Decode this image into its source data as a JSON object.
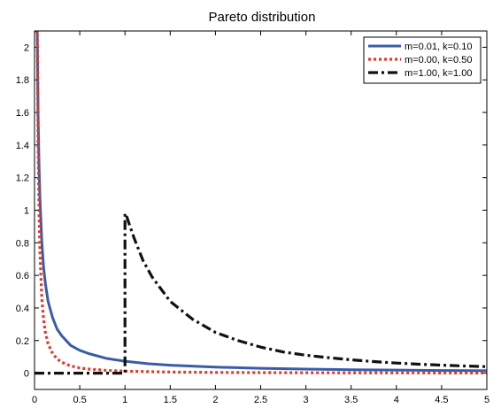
{
  "chart_data": {
    "type": "line",
    "title": "Pareto distribution",
    "xlabel": "",
    "ylabel": "",
    "xlim": [
      0,
      5
    ],
    "ylim": [
      -0.1,
      2.1
    ],
    "xticks": [
      0,
      0.5,
      1,
      1.5,
      2,
      2.5,
      3,
      3.5,
      4,
      4.5,
      5
    ],
    "xtick_labels": [
      "0",
      "0.5",
      "1",
      "1.5",
      "2",
      "2.5",
      "3",
      "3.5",
      "4",
      "4.5",
      "5"
    ],
    "yticks": [
      0,
      0.2,
      0.4,
      0.6,
      0.8,
      1,
      1.2,
      1.4,
      1.6,
      1.8,
      2
    ],
    "ytick_labels": [
      "0",
      "0.2",
      "0.4",
      "0.6",
      "0.8",
      "1",
      "1.2",
      "1.4",
      "1.6",
      "1.8",
      "2"
    ],
    "grid": false,
    "legend_position": "top-right",
    "series": [
      {
        "name": "m=0.01, k=0.10",
        "color": "#3a5ca8",
        "style": "solid",
        "x": [
          0.01,
          0.011,
          0.013,
          0.016,
          0.02,
          0.025,
          0.03,
          0.04,
          0.05,
          0.06,
          0.08,
          0.1,
          0.12,
          0.15,
          0.2,
          0.25,
          0.3,
          0.4,
          0.5,
          0.6,
          0.8,
          1.0,
          1.25,
          1.5,
          2.0,
          2.5,
          3.0,
          3.5,
          4.0,
          4.5,
          5.0
        ],
        "y": [
          2.1,
          2.1,
          2.1,
          2.1,
          2.1,
          2.1,
          2.1,
          1.57,
          1.27,
          1.07,
          0.81,
          0.65,
          0.55,
          0.44,
          0.34,
          0.27,
          0.23,
          0.17,
          0.14,
          0.12,
          0.09,
          0.073,
          0.058,
          0.049,
          0.037,
          0.03,
          0.025,
          0.021,
          0.019,
          0.016,
          0.015
        ]
      },
      {
        "name": "m=0.00, k=0.50",
        "color": "#e03a2e",
        "style": "dotted",
        "x": [
          0.003,
          0.004,
          0.006,
          0.008,
          0.01,
          0.015,
          0.02,
          0.025,
          0.03,
          0.04,
          0.05,
          0.06,
          0.08,
          0.1,
          0.12,
          0.15,
          0.2,
          0.25,
          0.3,
          0.4,
          0.5,
          0.6,
          0.8,
          1.0,
          1.5,
          2.0,
          2.5,
          3.0,
          3.5,
          4.0,
          4.5,
          5.0
        ],
        "y": [
          2.1,
          2.1,
          2.1,
          2.1,
          2.1,
          2.1,
          2.1,
          2.1,
          2.1,
          1.4,
          0.98,
          0.74,
          0.46,
          0.33,
          0.25,
          0.18,
          0.12,
          0.087,
          0.067,
          0.044,
          0.032,
          0.025,
          0.017,
          0.012,
          0.0068,
          0.0044,
          0.0032,
          0.0024,
          0.0019,
          0.0016,
          0.0013,
          0.0011
        ]
      },
      {
        "name": "m=1.00, k=1.00",
        "color": "#111111",
        "style": "dashdot",
        "x": [
          0,
          0.99,
          1.0,
          1.0,
          1.02,
          1.05,
          1.1,
          1.2,
          1.3,
          1.5,
          1.75,
          2.0,
          2.25,
          2.5,
          2.75,
          3.0,
          3.25,
          3.5,
          3.75,
          4.0,
          4.25,
          4.5,
          4.75,
          5.0
        ],
        "y": [
          0,
          0,
          0,
          0.98,
          0.96,
          0.91,
          0.83,
          0.69,
          0.59,
          0.44,
          0.33,
          0.25,
          0.2,
          0.16,
          0.13,
          0.11,
          0.095,
          0.082,
          0.071,
          0.062,
          0.055,
          0.049,
          0.044,
          0.04
        ]
      }
    ]
  }
}
